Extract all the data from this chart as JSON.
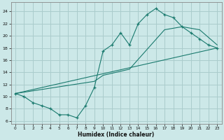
{
  "bg_color": "#cce8e8",
  "grid_color": "#aacccc",
  "line_color": "#1a7a6e",
  "xlabel": "Humidex (Indice chaleur)",
  "yticks": [
    6,
    8,
    10,
    12,
    14,
    16,
    18,
    20,
    22,
    24
  ],
  "xticks": [
    0,
    1,
    2,
    3,
    4,
    5,
    6,
    7,
    8,
    9,
    10,
    11,
    12,
    13,
    14,
    15,
    16,
    17,
    18,
    19,
    20,
    21,
    22,
    23
  ],
  "xlim": [
    -0.5,
    23.5
  ],
  "ylim": [
    5.5,
    25.5
  ],
  "line1_x": [
    0,
    1,
    2,
    3,
    4,
    5,
    6,
    7,
    8,
    9,
    10,
    11,
    12,
    13,
    14,
    15,
    16,
    17,
    18,
    19,
    20,
    21,
    22,
    23
  ],
  "line1_y": [
    10.5,
    10.0,
    9.0,
    8.5,
    8.0,
    7.0,
    7.0,
    6.5,
    8.5,
    11.5,
    17.5,
    18.5,
    20.5,
    18.5,
    22.0,
    23.5,
    24.5,
    23.5,
    23.0,
    21.5,
    20.5,
    19.5,
    18.5,
    18.0
  ],
  "line2_x": [
    0,
    23
  ],
  "line2_y": [
    10.5,
    18.0
  ],
  "line3_x": [
    0,
    9,
    10,
    13,
    17,
    19,
    21,
    23
  ],
  "line3_y": [
    10.5,
    12.5,
    13.5,
    14.5,
    21.0,
    21.5,
    21.0,
    18.5
  ]
}
